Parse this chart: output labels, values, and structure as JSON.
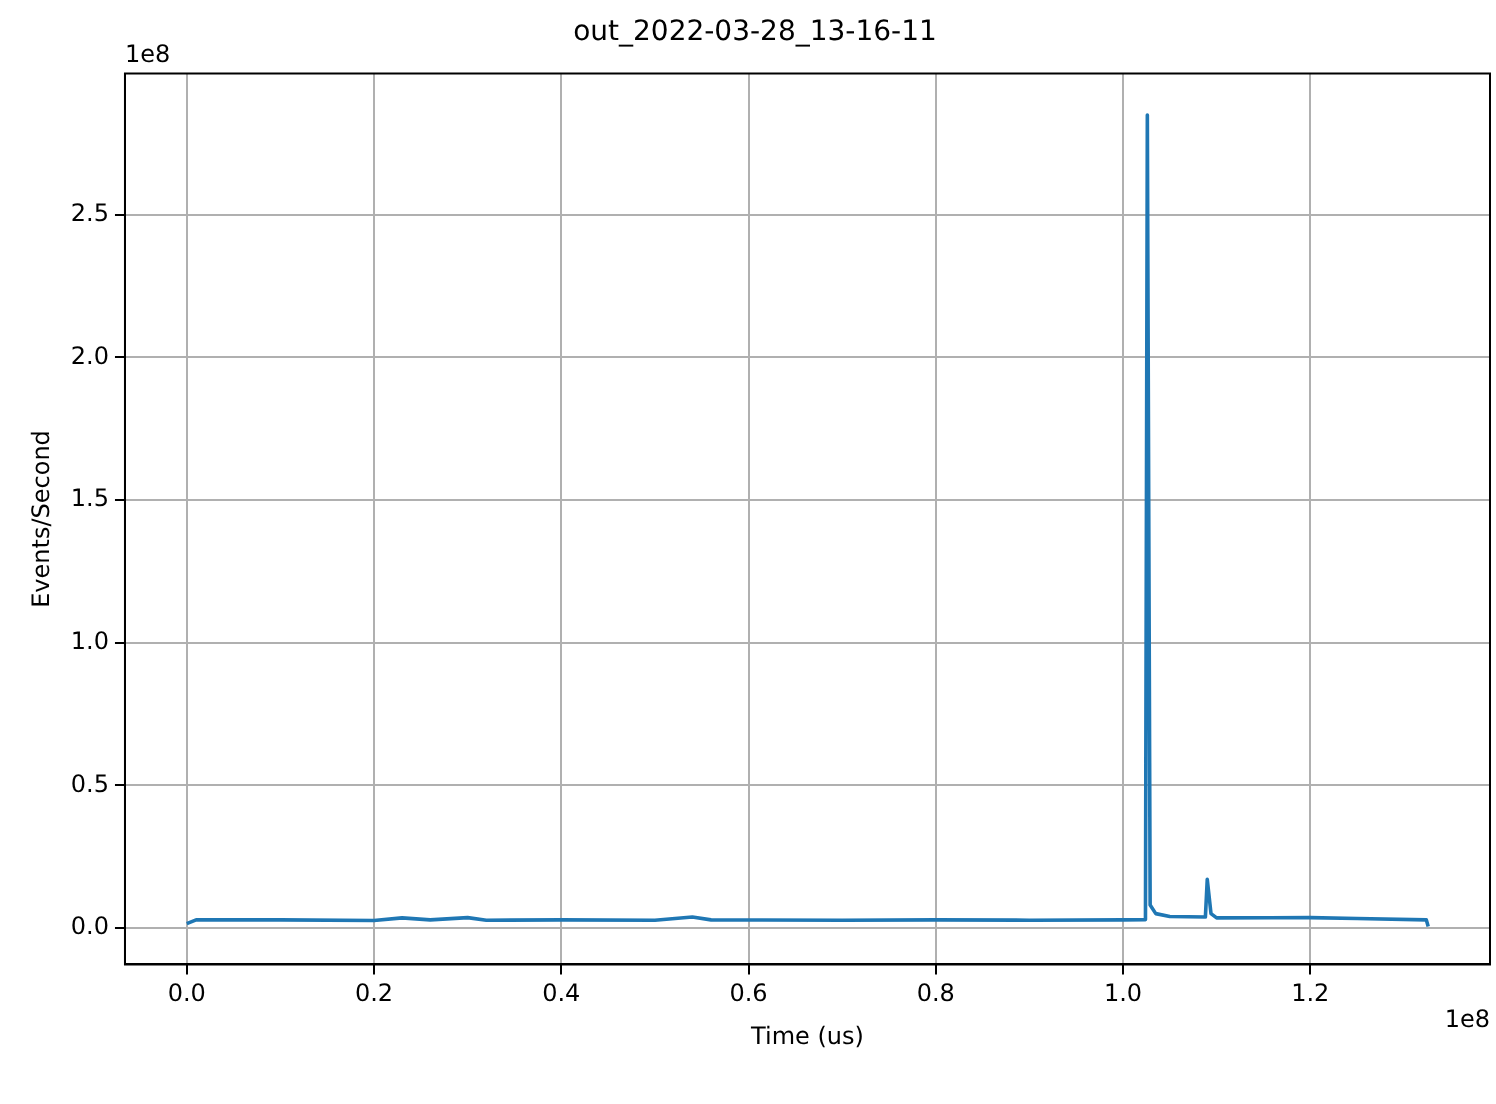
{
  "chart_data": {
    "type": "line",
    "title": "out_2022-03-28_13-16-11",
    "xlabel": "Time (us)",
    "ylabel": "Events/Second",
    "annotations": [
      "1e8",
      "1e8"
    ],
    "x": [
      0,
      0.01,
      0.1,
      0.2,
      0.23,
      0.26,
      0.3,
      0.32,
      0.4,
      0.5,
      0.54,
      0.56,
      0.7,
      0.8,
      0.9,
      1.0,
      1.024,
      1.026,
      1.029,
      1.035,
      1.05,
      1.088,
      1.09,
      1.094,
      1.1,
      1.2,
      1.25,
      1.324,
      1.326
    ],
    "series": [
      {
        "color": "#1f77b4",
        "values": [
          0.015,
          0.028,
          0.028,
          0.026,
          0.035,
          0.028,
          0.036,
          0.027,
          0.028,
          0.027,
          0.038,
          0.028,
          0.027,
          0.028,
          0.027,
          0.028,
          0.029,
          2.85,
          0.08,
          0.05,
          0.04,
          0.038,
          0.17,
          0.05,
          0.035,
          0.036,
          0.033,
          0.028,
          0.005
        ]
      }
    ],
    "xlim": [
      -0.066,
      1.392
    ],
    "ylim": [
      -0.128,
      2.995
    ],
    "xticks": [
      {
        "value": 0,
        "label": "0.0"
      },
      0.2,
      0.4,
      0.6,
      0.8,
      {
        "value": 1,
        "label": "1.0"
      },
      1.2
    ],
    "yticks": [
      {
        "value": 0,
        "label": "0.0"
      },
      0.5,
      {
        "value": 1,
        "label": "1.0"
      },
      1.5,
      {
        "value": 2,
        "label": "2.0"
      },
      2.5
    ],
    "grid": true,
    "legend": false,
    "marker": "none",
    "line_style": "solid"
  }
}
